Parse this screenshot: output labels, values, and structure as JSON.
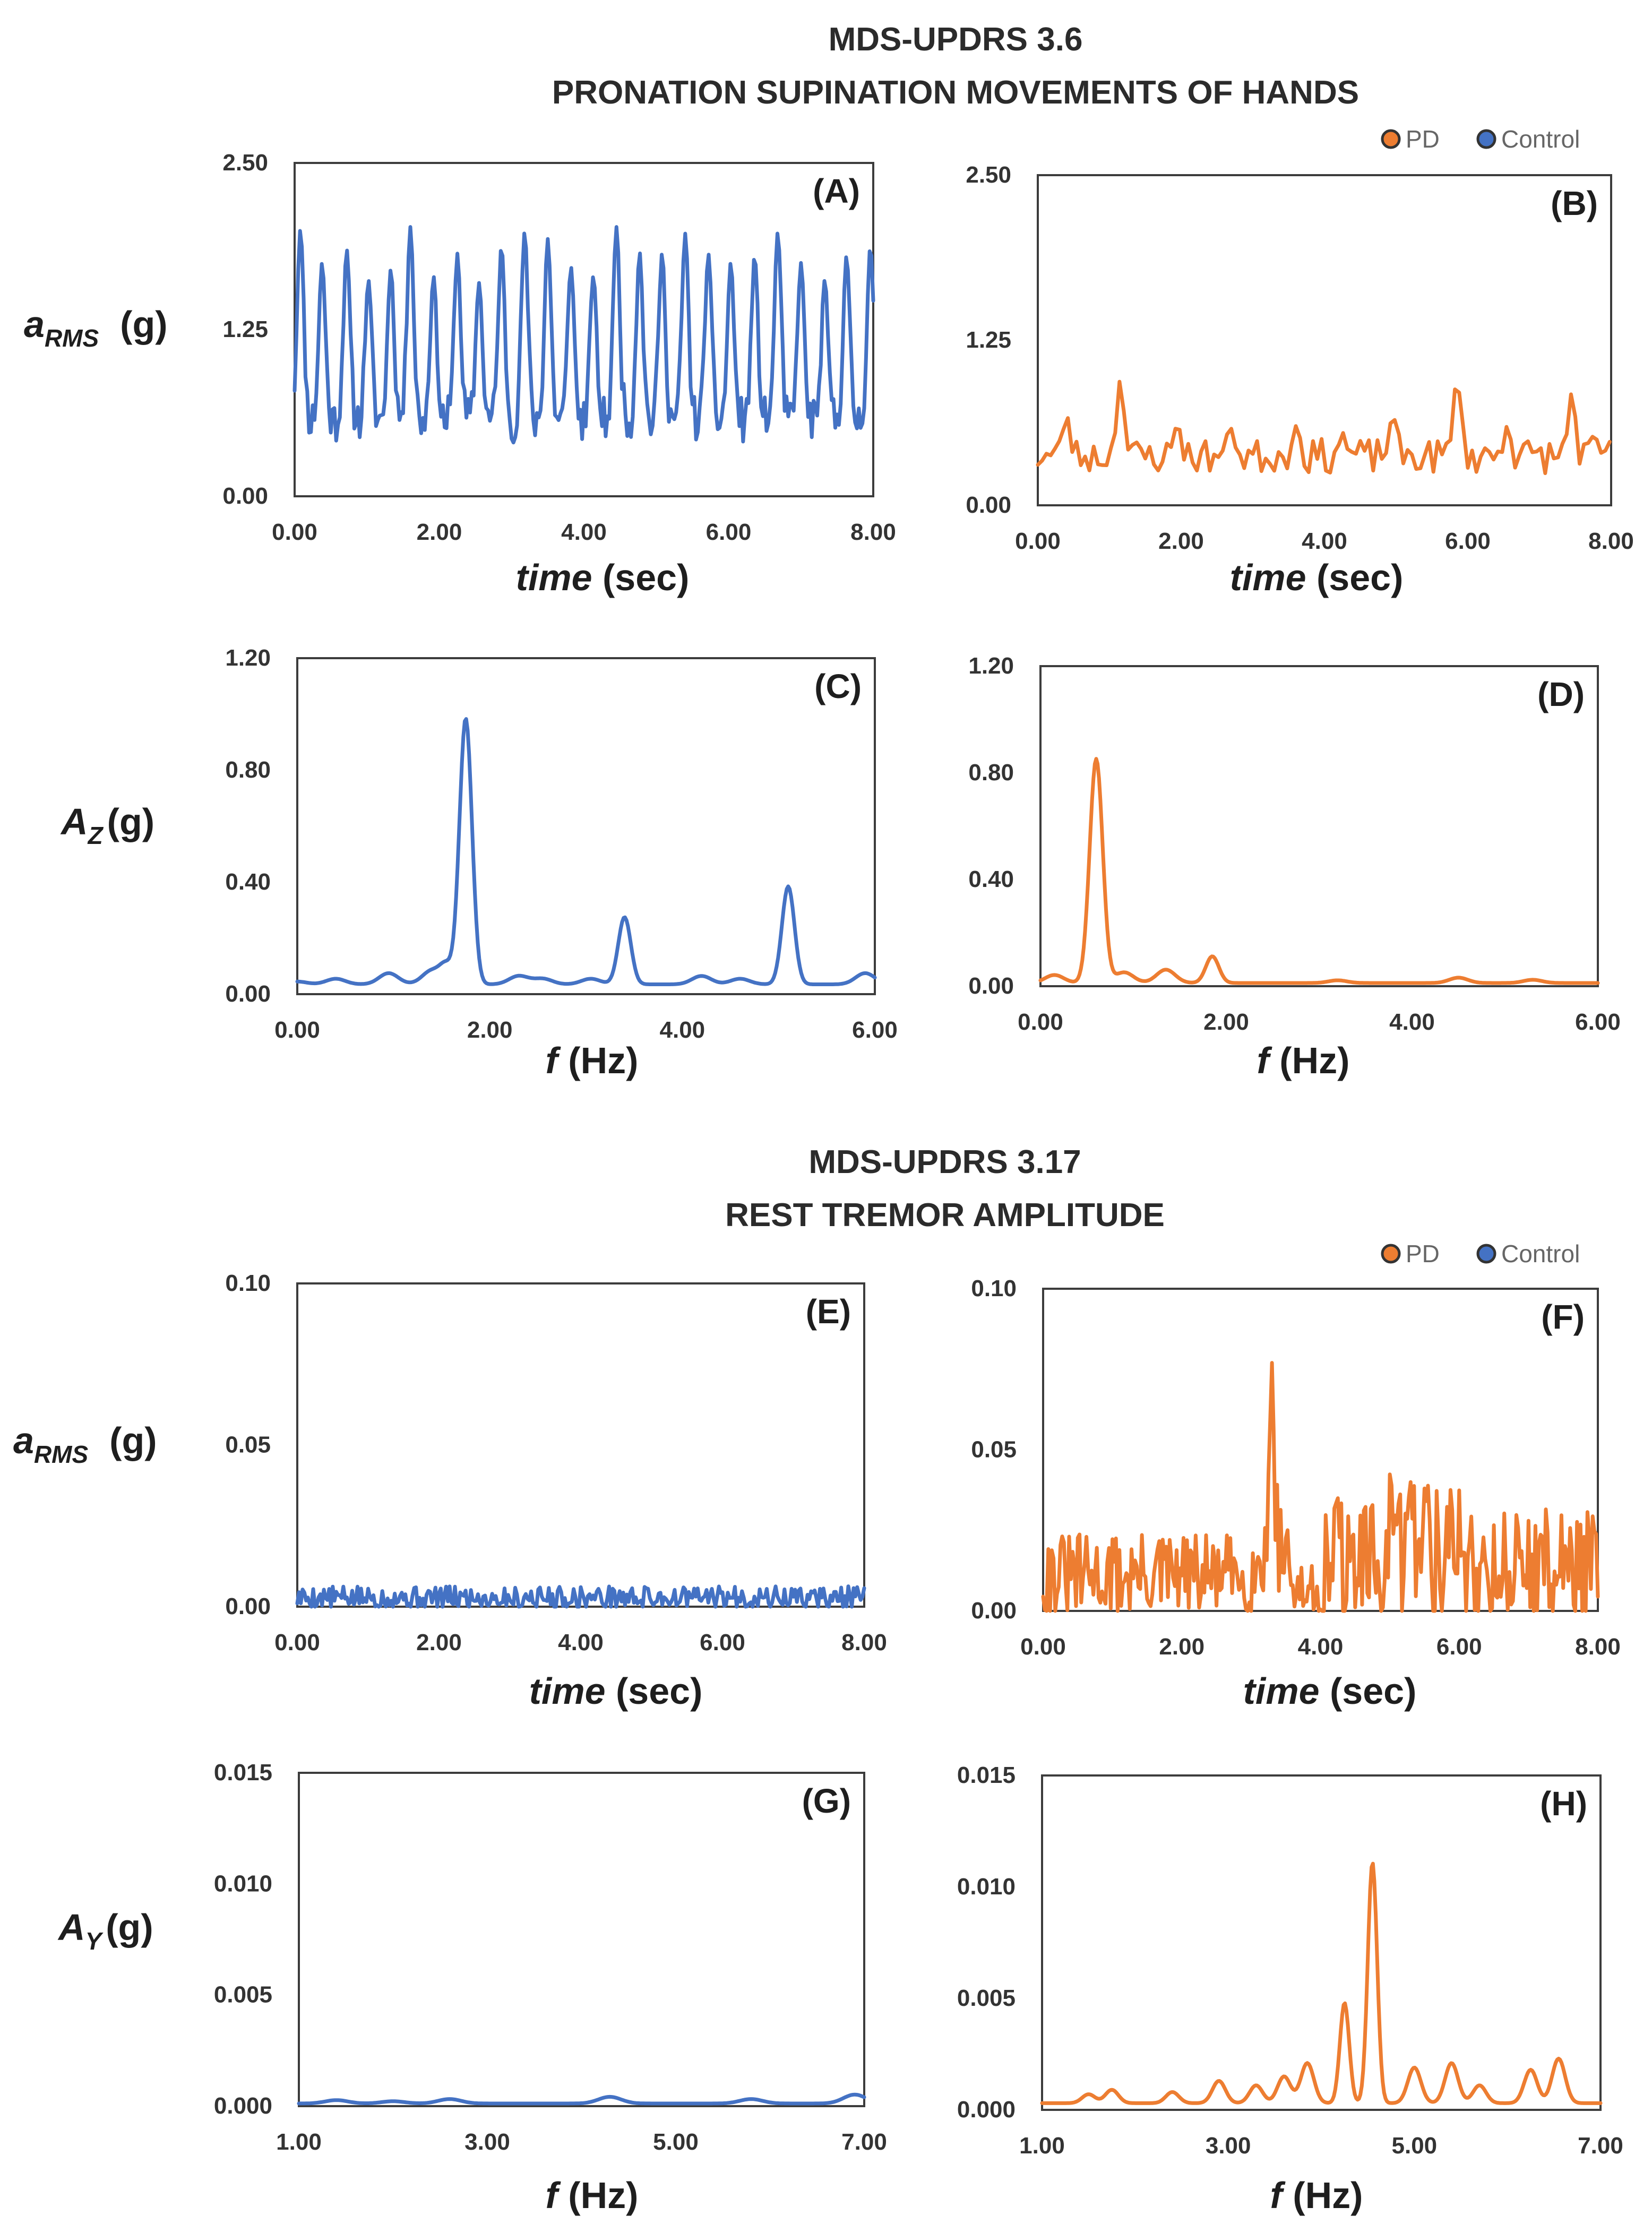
{
  "colors": {
    "pd": "#ED7D31",
    "control": "#4472C4"
  },
  "sections": [
    {
      "title_line1": "MDS-UPDRS 3.6",
      "title_line2": "PRONATION SUPINATION MOVEMENTS OF HANDS"
    },
    {
      "title_line1": "MDS-UPDRS 3.17",
      "title_line2": "REST TREMOR AMPLITUDE"
    }
  ],
  "legends": [
    {
      "pd": "PD",
      "control": "Control"
    },
    {
      "pd": "PD",
      "control": "Control"
    }
  ],
  "ylabels": {
    "a_rms_main": "a",
    "a_rms_sub": "RMS",
    "a_rms_unit": "(g)",
    "az_main": "A",
    "az_sub": "Z",
    "az_unit": "(g)",
    "ay_main": "A",
    "ay_sub": "Y",
    "ay_unit": "(g)"
  },
  "xlabels": {
    "time_main": "time",
    "time_unit": "(sec)",
    "freq_main": "f",
    "freq_unit": "(Hz)"
  },
  "chart_data": [
    {
      "panel": "(A)",
      "type": "line",
      "series": [
        {
          "name": "Control",
          "color": "#4472C4"
        }
      ],
      "xlim": [
        0,
        8
      ],
      "ylim": [
        0,
        2.5
      ],
      "xticks": [
        "0.00",
        "2.00",
        "4.00",
        "6.00",
        "8.00"
      ],
      "yticks": [
        "0.00",
        "1.25",
        "2.50"
      ],
      "xticks_values": [
        0,
        2,
        4,
        6,
        8
      ],
      "yticks_values": [
        0,
        1.25,
        2.5
      ],
      "signal": {
        "kind": "spiky",
        "base": 0.55,
        "noise": 0.17,
        "step": 0.025,
        "seed": 11,
        "peaks": [
          [
            0.08,
            2.0
          ],
          [
            0.38,
            1.75
          ],
          [
            0.72,
            1.85
          ],
          [
            1.02,
            1.62
          ],
          [
            1.33,
            1.7
          ],
          [
            1.6,
            2.02
          ],
          [
            1.92,
            1.65
          ],
          [
            2.25,
            1.82
          ],
          [
            2.55,
            1.6
          ],
          [
            2.86,
            1.87
          ],
          [
            3.18,
            1.98
          ],
          [
            3.5,
            1.93
          ],
          [
            3.82,
            1.72
          ],
          [
            4.13,
            1.65
          ],
          [
            4.45,
            2.02
          ],
          [
            4.77,
            1.83
          ],
          [
            5.08,
            1.82
          ],
          [
            5.4,
            1.97
          ],
          [
            5.72,
            1.82
          ],
          [
            6.03,
            1.75
          ],
          [
            6.36,
            1.8
          ],
          [
            6.68,
            1.98
          ],
          [
            7.0,
            1.75
          ],
          [
            7.33,
            1.62
          ],
          [
            7.63,
            1.8
          ],
          [
            7.96,
            1.87
          ]
        ],
        "peak_width": 0.045
      }
    },
    {
      "panel": "(B)",
      "type": "line",
      "series": [
        {
          "name": "PD",
          "color": "#ED7D31"
        }
      ],
      "xlim": [
        0,
        8
      ],
      "ylim": [
        0,
        2.5
      ],
      "xticks": [
        "0.00",
        "2.00",
        "4.00",
        "6.00",
        "8.00"
      ],
      "yticks": [
        "0.00",
        "1.25",
        "2.50"
      ],
      "xticks_values": [
        0,
        2,
        4,
        6,
        8
      ],
      "yticks_values": [
        0,
        1.25,
        2.5
      ],
      "signal": {
        "kind": "spiky",
        "base": 0.36,
        "noise": 0.13,
        "step": 0.06,
        "seed": 23,
        "peaks": [
          [
            0.4,
            0.68
          ],
          [
            1.15,
            0.95
          ],
          [
            1.95,
            0.62
          ],
          [
            2.7,
            0.58
          ],
          [
            3.6,
            0.6
          ],
          [
            4.25,
            0.55
          ],
          [
            4.95,
            0.68
          ],
          [
            5.85,
            0.97
          ],
          [
            6.55,
            0.6
          ],
          [
            7.45,
            0.85
          ],
          [
            7.75,
            0.52
          ]
        ],
        "peak_width": 0.05
      }
    },
    {
      "panel": "(C)",
      "type": "line",
      "series": [
        {
          "name": "Control",
          "color": "#4472C4"
        }
      ],
      "xlim": [
        0,
        6
      ],
      "ylim": [
        0,
        1.2
      ],
      "xticks": [
        "0.00",
        "2.00",
        "4.00",
        "6.00"
      ],
      "yticks": [
        "0.00",
        "0.40",
        "0.80",
        "1.20"
      ],
      "xticks_values": [
        0,
        2,
        4,
        6
      ],
      "yticks_values": [
        0,
        0.4,
        0.8,
        1.2
      ],
      "signal": {
        "kind": "spectrum",
        "base": 0.035,
        "step": 0.015,
        "ripples": [
          [
            0.0,
            0.01
          ],
          [
            0.4,
            0.02
          ],
          [
            0.95,
            0.04
          ],
          [
            1.4,
            0.05
          ],
          [
            2.3,
            0.03
          ],
          [
            2.55,
            0.02
          ],
          [
            3.05,
            0.02
          ],
          [
            4.2,
            0.03
          ],
          [
            4.6,
            0.02
          ],
          [
            5.9,
            0.04
          ]
        ],
        "ripple_width": 0.1,
        "peaks": [
          [
            1.75,
            0.95
          ],
          [
            3.4,
            0.24
          ],
          [
            5.1,
            0.35
          ],
          [
            1.55,
            0.06
          ]
        ],
        "peak_width": 0.065
      }
    },
    {
      "panel": "(D)",
      "type": "line",
      "series": [
        {
          "name": "PD",
          "color": "#ED7D31"
        }
      ],
      "xlim": [
        0,
        6
      ],
      "ylim": [
        0,
        1.2
      ],
      "xticks": [
        "0.00",
        "2.00",
        "4.00",
        "6.00"
      ],
      "yticks": [
        "0.00",
        "0.40",
        "0.80",
        "1.20"
      ],
      "xticks_values": [
        0,
        2,
        4,
        6
      ],
      "yticks_values": [
        0,
        0.4,
        0.8,
        1.2
      ],
      "signal": {
        "kind": "spectrum",
        "base": 0.012,
        "step": 0.015,
        "ripples": [
          [
            0.15,
            0.03
          ],
          [
            0.9,
            0.04
          ],
          [
            1.35,
            0.05
          ],
          [
            3.2,
            0.01
          ],
          [
            4.5,
            0.02
          ],
          [
            5.3,
            0.012
          ]
        ],
        "ripple_width": 0.1,
        "peaks": [
          [
            0.6,
            0.84
          ],
          [
            1.85,
            0.1
          ]
        ],
        "peak_width": 0.07
      }
    },
    {
      "panel": "(E)",
      "type": "line",
      "series": [
        {
          "name": "Control",
          "color": "#4472C4"
        }
      ],
      "xlim": [
        0,
        8
      ],
      "ylim": [
        0,
        0.1
      ],
      "xticks": [
        "0.00",
        "2.00",
        "4.00",
        "6.00",
        "8.00"
      ],
      "yticks": [
        "0.00",
        "0.05",
        "0.10"
      ],
      "xticks_values": [
        0,
        2,
        4,
        6,
        8
      ],
      "yticks_values": [
        0,
        0.05,
        0.1
      ],
      "signal": {
        "kind": "spiky",
        "base": 0.0025,
        "noise": 0.0035,
        "step": 0.025,
        "seed": 5,
        "peaks": [],
        "peak_width": 0.05
      }
    },
    {
      "panel": "(F)",
      "type": "line",
      "series": [
        {
          "name": "PD",
          "color": "#ED7D31"
        }
      ],
      "xlim": [
        0,
        8
      ],
      "ylim": [
        0,
        0.1
      ],
      "xticks": [
        "0.00",
        "2.00",
        "4.00",
        "6.00",
        "8.00"
      ],
      "yticks": [
        "0.00",
        "0.05",
        "0.10"
      ],
      "xticks_values": [
        0,
        2,
        4,
        6,
        8
      ],
      "yticks_values": [
        0,
        0.05,
        0.1
      ],
      "signal": {
        "kind": "tremor",
        "base": 0.01,
        "noise": 0.014,
        "step": 0.025,
        "seed": 31,
        "segments": [
          [
            0,
            3.1,
            0.011,
            0.013
          ],
          [
            3.1,
            3.55,
            0.02,
            0.018
          ],
          [
            3.55,
            4.0,
            0.006,
            0.008
          ],
          [
            4.0,
            5.0,
            0.013,
            0.02
          ],
          [
            5.0,
            6.2,
            0.018,
            0.025
          ],
          [
            6.2,
            8.0,
            0.014,
            0.018
          ]
        ],
        "peaks": [
          [
            3.3,
            0.077
          ],
          [
            4.25,
            0.035
          ],
          [
            5.3,
            0.04
          ],
          [
            5.5,
            0.038
          ]
        ],
        "peak_width": 0.03
      }
    },
    {
      "panel": "(G)",
      "type": "line",
      "series": [
        {
          "name": "Control",
          "color": "#4472C4"
        }
      ],
      "xlim": [
        1,
        7
      ],
      "ylim": [
        0,
        0.015
      ],
      "xticks": [
        "1.00",
        "3.00",
        "5.00",
        "7.00"
      ],
      "yticks": [
        "0.000",
        "0.005",
        "0.010",
        "0.015"
      ],
      "xticks_values": [
        1,
        3,
        5,
        7
      ],
      "yticks_values": [
        0,
        0.005,
        0.01,
        0.015
      ],
      "signal": {
        "kind": "spectrum",
        "base": 0.00012,
        "step": 0.02,
        "ripples": [
          [
            1.4,
            0.00015
          ],
          [
            2.0,
            0.0001
          ],
          [
            2.6,
            0.0002
          ],
          [
            4.3,
            0.0003
          ],
          [
            5.8,
            0.0002
          ],
          [
            6.9,
            0.0004
          ]
        ],
        "ripple_width": 0.12,
        "peaks": [],
        "peak_width": 0.07
      }
    },
    {
      "panel": "(H)",
      "type": "line",
      "series": [
        {
          "name": "PD",
          "color": "#ED7D31"
        }
      ],
      "xlim": [
        1,
        7
      ],
      "ylim": [
        0,
        0.015
      ],
      "xticks": [
        "1.00",
        "3.00",
        "5.00",
        "7.00"
      ],
      "yticks": [
        "0.000",
        "0.005",
        "0.010",
        "0.015"
      ],
      "xticks_values": [
        1,
        3,
        5,
        7
      ],
      "yticks_values": [
        0,
        0.005,
        0.01,
        0.015
      ],
      "signal": {
        "kind": "spectrum",
        "base": 0.0003,
        "step": 0.015,
        "ripples": [
          [
            1.5,
            0.0004
          ],
          [
            1.75,
            0.0006
          ],
          [
            2.4,
            0.0005
          ],
          [
            2.9,
            0.001
          ],
          [
            3.3,
            0.0008
          ],
          [
            3.6,
            0.0012
          ],
          [
            3.85,
            0.0018
          ],
          [
            5.0,
            0.0016
          ],
          [
            5.4,
            0.0018
          ],
          [
            5.7,
            0.0008
          ],
          [
            6.25,
            0.0015
          ],
          [
            6.55,
            0.002
          ]
        ],
        "ripple_width": 0.07,
        "peaks": [
          [
            4.55,
            0.0108
          ],
          [
            4.25,
            0.0045
          ]
        ],
        "peak_width": 0.05
      }
    }
  ]
}
